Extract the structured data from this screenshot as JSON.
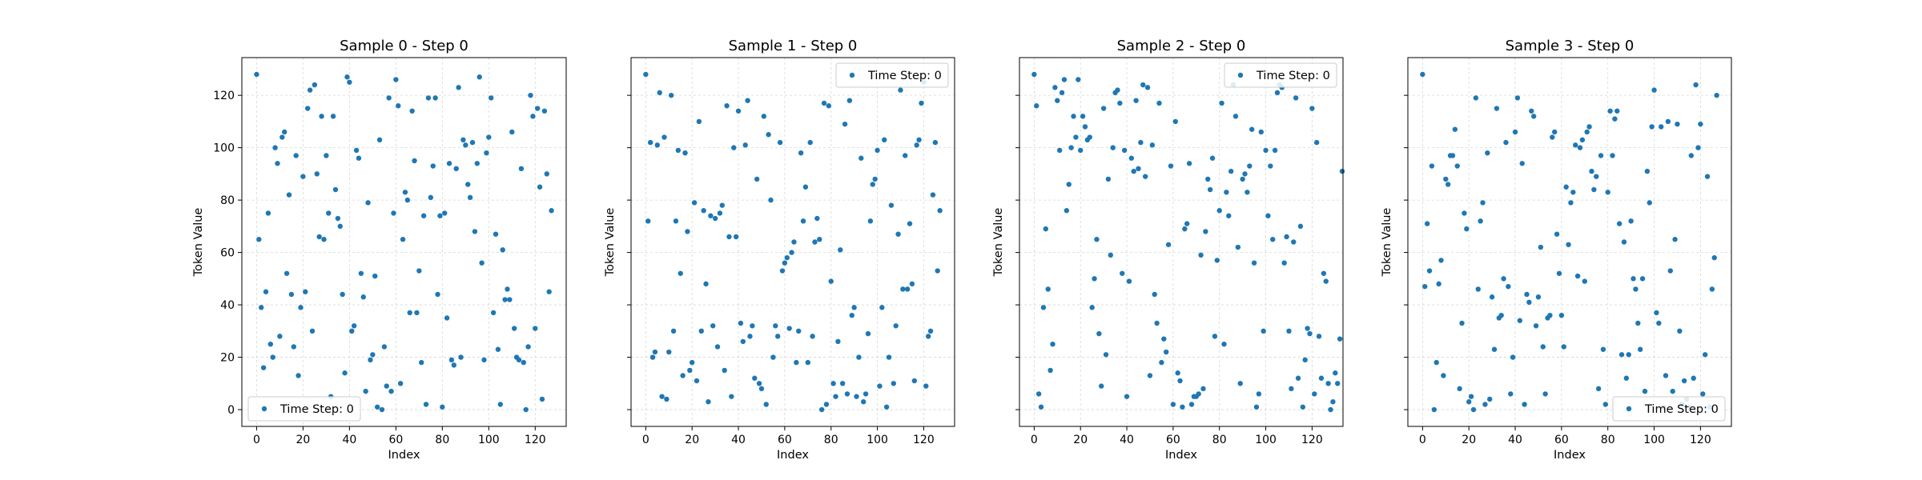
{
  "colors": {
    "point": "#1f77b4",
    "grid": "#b0b0b0",
    "frame": "#000000",
    "legend_border": "#cccccc"
  },
  "chart_data": [
    {
      "type": "scatter",
      "title": "Sample 0 - Step 0",
      "xlabel": "Index",
      "ylabel": "Token Value",
      "xlim": [
        -6.35,
        133.35
      ],
      "ylim": [
        -6.4,
        134.4
      ],
      "xticks": [
        "0",
        "20",
        "40",
        "60",
        "80",
        "100",
        "120"
      ],
      "yticks": [
        "0",
        "20",
        "40",
        "60",
        "80",
        "100",
        "120"
      ],
      "grid": true,
      "legend": {
        "label": "Time Step: 0",
        "placement": "lower-left"
      },
      "y": [
        128,
        65,
        39,
        16,
        45,
        75,
        25,
        20,
        100,
        94,
        28,
        104,
        106,
        52,
        82,
        44,
        24,
        97,
        13,
        39,
        89,
        45,
        115,
        122,
        30,
        124,
        90,
        66,
        112,
        65,
        97,
        75,
        5,
        112,
        84,
        73,
        70,
        44,
        14,
        127,
        125,
        30,
        32,
        99,
        96,
        52,
        43,
        7,
        79,
        19,
        21,
        51,
        1,
        103,
        0,
        24,
        9,
        119,
        7,
        75,
        126,
        116,
        10,
        65,
        83,
        80,
        37,
        114,
        95,
        37,
        53,
        18,
        74,
        2,
        119,
        81,
        93,
        119,
        44,
        74,
        1,
        75,
        35,
        94,
        19,
        17,
        92,
        123,
        20,
        103,
        101,
        86,
        81,
        102,
        68,
        94,
        127,
        56,
        19,
        98,
        104,
        119,
        37,
        67,
        23,
        2,
        61,
        42,
        46,
        42,
        106,
        31,
        20,
        19,
        92,
        18,
        0,
        24,
        120,
        112,
        31,
        115,
        85,
        4,
        114,
        90,
        45,
        76
      ]
    },
    {
      "type": "scatter",
      "title": "Sample 1 - Step 0",
      "xlabel": "Index",
      "ylabel": "Token Value",
      "xlim": [
        -6.35,
        133.35
      ],
      "ylim": [
        -6.4,
        134.4
      ],
      "xticks": [
        "0",
        "20",
        "40",
        "60",
        "80",
        "100",
        "120"
      ],
      "yticks": [
        "0",
        "20",
        "40",
        "60",
        "80",
        "100",
        "120"
      ],
      "grid": true,
      "legend": {
        "label": "Time Step: 0",
        "placement": "upper-right"
      },
      "y": [
        128,
        72,
        102,
        20,
        22,
        101,
        121,
        5,
        104,
        4,
        22,
        120,
        30,
        72,
        99,
        52,
        13,
        98,
        68,
        15,
        18,
        79,
        11,
        110,
        30,
        76,
        48,
        3,
        74,
        32,
        73,
        24,
        75,
        78,
        15,
        116,
        66,
        5,
        100,
        66,
        114,
        33,
        26,
        101,
        118,
        28,
        32,
        12,
        88,
        10,
        8,
        112,
        2,
        105,
        80,
        20,
        32,
        28,
        102,
        53,
        56,
        58,
        31,
        60,
        64,
        18,
        30,
        98,
        72,
        85,
        18,
        102,
        28,
        64,
        73,
        65,
        0,
        117,
        2,
        116,
        49,
        10,
        5,
        26,
        61,
        10,
        109,
        6,
        118,
        36,
        39,
        5,
        20,
        96,
        3,
        6,
        29,
        72,
        86,
        88,
        99,
        9,
        39,
        103,
        1,
        20,
        78,
        10,
        32,
        67,
        122,
        46,
        97,
        46,
        71,
        48,
        11,
        101,
        103,
        117,
        125,
        9,
        28,
        30,
        82,
        102,
        53,
        76
      ]
    },
    {
      "type": "scatter",
      "title": "Sample 2 - Step 0",
      "xlabel": "Index",
      "ylabel": "Token Value",
      "xlim": [
        -6.35,
        133.35
      ],
      "ylim": [
        -6.4,
        134.4
      ],
      "xticks": [
        "0",
        "20",
        "40",
        "60",
        "80",
        "100",
        "120"
      ],
      "yticks": [
        "0",
        "20",
        "40",
        "60",
        "80",
        "100",
        "120"
      ],
      "grid": true,
      "legend": {
        "label": "Time Step: 0",
        "placement": "upper-right"
      },
      "y": [
        128,
        116,
        6,
        1,
        39,
        69,
        46,
        15,
        25,
        123,
        118,
        99,
        121,
        126,
        76,
        86,
        100,
        112,
        104,
        126,
        99,
        112,
        108,
        103,
        104,
        39,
        50,
        65,
        29,
        9,
        115,
        21,
        88,
        59,
        100,
        121,
        122,
        117,
        52,
        99,
        5,
        49,
        96,
        91,
        118,
        92,
        102,
        124,
        89,
        123,
        13,
        101,
        44,
        33,
        117,
        18,
        27,
        22,
        63,
        93,
        2,
        110,
        14,
        11,
        1,
        69,
        71,
        94,
        2,
        5,
        5,
        6,
        59,
        8,
        68,
        88,
        84,
        96,
        28,
        57,
        76,
        117,
        25,
        83,
        74,
        91,
        124,
        112,
        62,
        10,
        88,
        90,
        83,
        93,
        107,
        56,
        1,
        6,
        106,
        30,
        99,
        74,
        93,
        65,
        99,
        121,
        124,
        123,
        56,
        66,
        30,
        8,
        64,
        119,
        12,
        70,
        1,
        19,
        31,
        29,
        115,
        6,
        102,
        28,
        12,
        52,
        49,
        10,
        0,
        3,
        14,
        10,
        27,
        91
      ]
    },
    {
      "type": "scatter",
      "title": "Sample 3 - Step 0",
      "xlabel": "Index",
      "ylabel": "Token Value",
      "xlim": [
        -6.35,
        133.35
      ],
      "ylim": [
        -6.4,
        134.4
      ],
      "xticks": [
        "0",
        "20",
        "40",
        "60",
        "80",
        "100",
        "120"
      ],
      "yticks": [
        "0",
        "20",
        "40",
        "60",
        "80",
        "100",
        "120"
      ],
      "grid": true,
      "legend": {
        "label": "Time Step: 0",
        "placement": "lower-right"
      },
      "y": [
        128,
        47,
        71,
        53,
        93,
        0,
        18,
        48,
        57,
        13,
        88,
        86,
        97,
        97,
        107,
        93,
        8,
        33,
        75,
        69,
        3,
        5,
        0,
        119,
        46,
        72,
        79,
        2,
        98,
        4,
        43,
        23,
        115,
        35,
        36,
        50,
        102,
        47,
        6,
        20,
        106,
        119,
        34,
        94,
        2,
        44,
        41,
        114,
        112,
        32,
        43,
        62,
        24,
        6,
        35,
        36,
        104,
        106,
        67,
        52,
        36,
        24,
        85,
        63,
        79,
        83,
        101,
        51,
        100,
        103,
        49,
        106,
        108,
        91,
        84,
        89,
        8,
        97,
        23,
        2,
        83,
        114,
        97,
        111,
        114,
        71,
        21,
        64,
        12,
        21,
        72,
        50,
        46,
        33,
        23,
        50,
        7,
        91,
        79,
        108,
        122,
        37,
        33,
        108,
        1,
        13,
        110,
        53,
        7,
        65,
        109,
        30,
        2,
        11,
        4,
        1,
        97,
        12,
        124,
        100,
        109,
        6,
        21,
        89,
        1,
        46,
        58,
        120
      ]
    }
  ]
}
